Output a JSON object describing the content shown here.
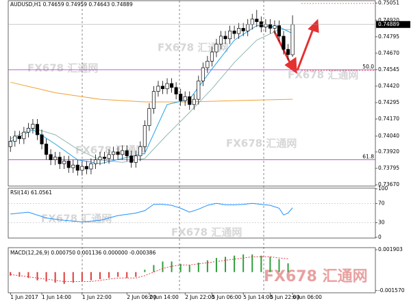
{
  "watermark": "FX678 汇通网",
  "chart_data": [
    {
      "type": "candlestick",
      "title": "AUDUSD,H1 0.74659 0.74959 0.74643 0.74889",
      "open": [
        0.7396,
        0.74,
        0.7404,
        0.7402,
        0.7407,
        0.741,
        0.7413,
        0.7405,
        0.7398,
        0.739,
        0.7386,
        0.7388,
        0.7383,
        0.7385,
        0.738,
        0.7382,
        0.7378,
        0.7381,
        0.7379,
        0.7383,
        0.7386,
        0.7388,
        0.7387,
        0.739,
        0.7392,
        0.739,
        0.7393,
        0.7389,
        0.7384,
        0.7389,
        0.7396,
        0.7412,
        0.7425,
        0.7438,
        0.7442,
        0.744,
        0.7444,
        0.7441,
        0.7436,
        0.7431,
        0.7434,
        0.7428,
        0.7432,
        0.7446,
        0.7456,
        0.7461,
        0.7468,
        0.7474,
        0.748,
        0.7478,
        0.7484,
        0.7482,
        0.7486,
        0.7484,
        0.7489,
        0.7493,
        0.7491,
        0.7487,
        0.7489,
        0.7486,
        0.7488,
        0.748,
        0.747,
        0.74659
      ],
      "high": [
        0.7404,
        0.7408,
        0.7408,
        0.7411,
        0.7414,
        0.7417,
        0.7417,
        0.7409,
        0.7402,
        0.7394,
        0.7392,
        0.7392,
        0.7389,
        0.7389,
        0.7386,
        0.7386,
        0.7385,
        0.7385,
        0.7387,
        0.739,
        0.7392,
        0.7392,
        0.7394,
        0.7396,
        0.7396,
        0.7397,
        0.7397,
        0.7393,
        0.7393,
        0.74,
        0.7416,
        0.7429,
        0.7442,
        0.7446,
        0.7446,
        0.7448,
        0.7448,
        0.7445,
        0.744,
        0.7438,
        0.7438,
        0.7436,
        0.745,
        0.746,
        0.7465,
        0.7472,
        0.7478,
        0.7484,
        0.7484,
        0.7488,
        0.7488,
        0.749,
        0.749,
        0.7493,
        0.7497,
        0.75,
        0.7495,
        0.7493,
        0.7493,
        0.7492,
        0.7492,
        0.7484,
        0.7474,
        0.74959
      ],
      "low": [
        0.7392,
        0.7396,
        0.7398,
        0.7398,
        0.7403,
        0.7406,
        0.7401,
        0.7394,
        0.7386,
        0.7382,
        0.7382,
        0.7379,
        0.7379,
        0.7376,
        0.7376,
        0.7374,
        0.7374,
        0.7375,
        0.7375,
        0.7379,
        0.7382,
        0.7383,
        0.7383,
        0.7386,
        0.7386,
        0.7386,
        0.7385,
        0.738,
        0.738,
        0.7385,
        0.7392,
        0.7408,
        0.7421,
        0.7434,
        0.7436,
        0.7436,
        0.7437,
        0.7432,
        0.7427,
        0.7427,
        0.7424,
        0.7424,
        0.7428,
        0.7442,
        0.7452,
        0.7457,
        0.7464,
        0.747,
        0.7474,
        0.7474,
        0.7478,
        0.7478,
        0.748,
        0.748,
        0.7485,
        0.7487,
        0.7483,
        0.7483,
        0.7482,
        0.7482,
        0.7476,
        0.7466,
        0.7462,
        0.74643
      ],
      "close": [
        0.74,
        0.7404,
        0.7402,
        0.7407,
        0.741,
        0.7413,
        0.7405,
        0.7398,
        0.739,
        0.7386,
        0.7388,
        0.7383,
        0.7385,
        0.738,
        0.7382,
        0.7378,
        0.7381,
        0.7379,
        0.7383,
        0.7386,
        0.7388,
        0.7387,
        0.739,
        0.7392,
        0.739,
        0.7393,
        0.7389,
        0.7384,
        0.7389,
        0.7396,
        0.7412,
        0.7425,
        0.7438,
        0.7442,
        0.744,
        0.7444,
        0.7441,
        0.7436,
        0.7431,
        0.7434,
        0.7428,
        0.7432,
        0.7446,
        0.7456,
        0.7461,
        0.7468,
        0.7474,
        0.748,
        0.7478,
        0.7484,
        0.7482,
        0.7486,
        0.7484,
        0.7489,
        0.7493,
        0.7491,
        0.7487,
        0.7489,
        0.7486,
        0.7488,
        0.748,
        0.747,
        0.7466,
        0.74889
      ],
      "overlays": [
        {
          "color": "#f0a030",
          "x": [
            0,
            10,
            20,
            30,
            40,
            50,
            63
          ],
          "values": [
            0.7445,
            0.7437,
            0.7432,
            0.743,
            0.743,
            0.7431,
            0.7432
          ]
        },
        {
          "color": "#8fb8b0",
          "x": [
            0,
            5,
            10,
            15,
            20,
            25,
            30,
            35,
            40,
            45,
            50,
            55,
            60,
            63
          ],
          "values": [
            0.7402,
            0.741,
            0.7405,
            0.7394,
            0.7386,
            0.7384,
            0.7387,
            0.7405,
            0.7422,
            0.744,
            0.746,
            0.7477,
            0.7485,
            0.7485
          ]
        },
        {
          "color": "#1ea0e6",
          "x": [
            0,
            5,
            10,
            15,
            20,
            25,
            30,
            35,
            40,
            45,
            50,
            55,
            60,
            63
          ],
          "values": [
            0.74,
            0.7409,
            0.7398,
            0.7386,
            0.7383,
            0.7387,
            0.7391,
            0.7428,
            0.7432,
            0.7455,
            0.7477,
            0.7488,
            0.7487,
            0.7482
          ]
        }
      ],
      "levels": [
        {
          "value": 0.74545,
          "label": "50.0"
        },
        {
          "value": 0.7386,
          "label": "61.8"
        }
      ],
      "level_color": "#b040d0",
      "ylim": [
        0.7366,
        0.7507
      ],
      "yticks": [
        0.75051,
        {
          "value": 0.7492,
          "label": "0.74920"
        },
        0.74795,
        {
          "value": 0.7467,
          "label": "0.74670"
        },
        0.74545,
        {
          "value": 0.7442,
          "label": "0.74420"
        },
        0.74295,
        {
          "value": 0.7417,
          "label": "0.74170"
        },
        {
          "value": 0.7404,
          "label": "0.74040"
        },
        {
          "value": 0.7392,
          "label": "0.73920"
        },
        0.73795,
        {
          "value": 0.7367,
          "label": "0.73670"
        }
      ],
      "xlim": [
        0,
        82
      ],
      "xticks": [
        {
          "value": 0,
          "label": "1 Jun 2017"
        },
        {
          "value": 7,
          "label": "1 Jun 14:00"
        },
        {
          "value": 16,
          "label": "1 Jun 22:00"
        },
        {
          "value": 26,
          "label": "2 Jun 06:00"
        },
        {
          "value": 31,
          "label": "2 Jun 14:00"
        },
        {
          "value": 39,
          "label": "2 Jun 22:00"
        },
        {
          "value": 45,
          "label": "5 Jun 06:00"
        },
        {
          "value": 52,
          "label": "5 Jun 14:00"
        },
        {
          "value": 58,
          "label": "5 Jun 22:00"
        },
        {
          "value": 63,
          "label": "6 Jun 06:00"
        }
      ]
    },
    {
      "type": "line",
      "title": "RSI(14) 61.0561",
      "color": "#1e90ff",
      "x": [
        0,
        4,
        8,
        12,
        16,
        20,
        24,
        28,
        30,
        32,
        34,
        36,
        38,
        40,
        42,
        44,
        46,
        48,
        50,
        52,
        54,
        56,
        58,
        60,
        61,
        62,
        63
      ],
      "values": [
        48,
        52,
        40,
        35,
        32,
        35,
        45,
        50,
        55,
        68,
        68,
        66,
        60,
        52,
        58,
        66,
        70,
        67,
        67,
        68,
        70,
        68,
        66,
        60,
        46,
        50,
        61.0561
      ],
      "ylim": [
        0,
        100
      ],
      "yticks": [
        100,
        70,
        30,
        0
      ]
    },
    {
      "type": "macd",
      "title": "MACD(12,26,9) 0.000750 0.001136 0.000000 -0.000386",
      "x": [
        0,
        2,
        4,
        6,
        8,
        10,
        12,
        14,
        16,
        18,
        20,
        22,
        24,
        26,
        28,
        30,
        32,
        34,
        36,
        38,
        40,
        42,
        44,
        46,
        48,
        50,
        52,
        54,
        56,
        58,
        60,
        62
      ],
      "values": [
        -0.0003,
        -0.0004,
        -0.0005,
        -0.0007,
        -0.0008,
        -0.0009,
        -0.001,
        -0.0009,
        -0.0008,
        -0.0007,
        -0.0006,
        -0.0005,
        -0.0004,
        -0.0005,
        -0.0004,
        0.0002,
        0.0006,
        0.0009,
        0.0009,
        0.0007,
        0.0006,
        0.0008,
        0.001,
        0.0012,
        0.0013,
        0.0014,
        0.0015,
        0.0015,
        0.0014,
        0.0013,
        0.0011,
        0.00075
      ],
      "signal": [
        -0.0002,
        -0.0003,
        -0.0004,
        -0.0005,
        -0.0006,
        -0.0007,
        -0.0008,
        -0.0008,
        -0.0008,
        -0.0008,
        -0.0007,
        -0.0006,
        -0.0005,
        -0.0005,
        -0.0005,
        -0.0003,
        0.0,
        0.0003,
        0.0005,
        0.0006,
        0.0006,
        0.0007,
        0.0008,
        0.0009,
        0.001,
        0.0011,
        0.0012,
        0.0013,
        0.0013,
        0.0013,
        0.0012,
        0.001136
      ],
      "up_color": "#2e9e3a",
      "down_color": "#e03a3a",
      "signal_color": "#e03a3a",
      "ylim": [
        -0.0017,
        0.00202
      ],
      "yticks": [
        {
          "value": 0.001903,
          "label": "0.001903"
        },
        {
          "value": -0.00157,
          "label": "-0.001570"
        }
      ]
    }
  ]
}
